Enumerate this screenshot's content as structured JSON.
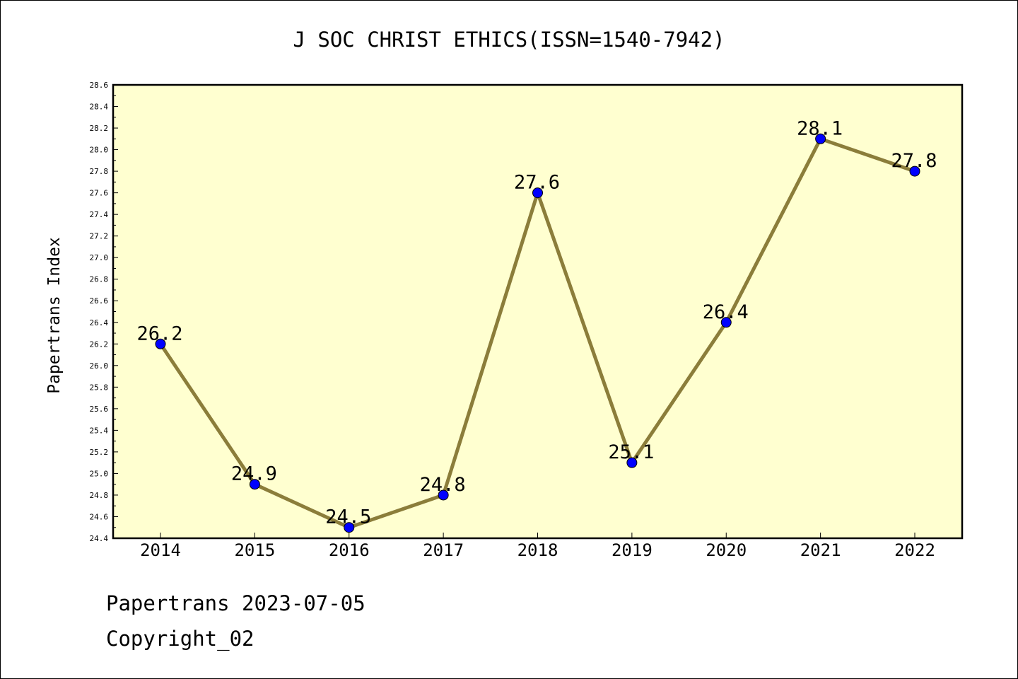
{
  "chart_data": {
    "type": "line",
    "title": "J SOC CHRIST ETHICS(ISSN=1540-7942)",
    "xlabel": "",
    "ylabel": "Papertrans Index",
    "categories": [
      "2014",
      "2015",
      "2016",
      "2017",
      "2018",
      "2019",
      "2020",
      "2021",
      "2022"
    ],
    "series": [
      {
        "values": [
          26.2,
          24.9,
          24.5,
          24.8,
          27.6,
          25.1,
          26.4,
          28.1,
          27.8
        ]
      }
    ],
    "data_labels": [
      "26.2",
      "24.9",
      "24.5",
      "24.8",
      "27.6",
      "25.1",
      "26.4",
      "28.1",
      "27.8"
    ],
    "ylim": [
      24.4,
      28.6
    ],
    "yticks": [
      "24.4",
      "24.6",
      "24.8",
      "25.0",
      "25.2",
      "25.4",
      "25.6",
      "25.8",
      "26.0",
      "26.2",
      "26.4",
      "26.6",
      "26.8",
      "27.0",
      "27.2",
      "27.4",
      "27.6",
      "27.8",
      "28.0",
      "28.2",
      "28.4",
      "28.6"
    ],
    "grid": false,
    "colors": {
      "plot_background": "#ffffd0",
      "line": "#8b7d3a",
      "marker": "#0000ff"
    }
  },
  "footer": {
    "line1": "Papertrans 2023-07-05",
    "line2": "Copyright_02"
  }
}
